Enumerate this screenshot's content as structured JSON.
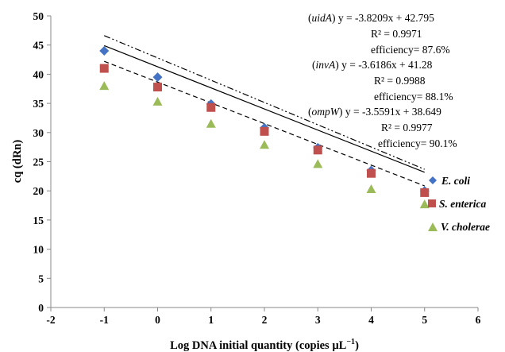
{
  "chart_data": {
    "type": "scatter",
    "xlabel": "Log DNA initial quantity (copies µL",
    "xlabel_sup": "−1",
    "xlabel_close": ")",
    "ylabel": "cq (dRn)",
    "xlim": [
      -2,
      6
    ],
    "ylim": [
      0,
      50
    ],
    "xticks": [
      "-2",
      "-1",
      "0",
      "1",
      "2",
      "3",
      "4",
      "5",
      "6"
    ],
    "yticks": [
      "0",
      "5",
      "10",
      "15",
      "20",
      "25",
      "30",
      "35",
      "40",
      "45",
      "50"
    ],
    "grid": false,
    "legend_position": "right",
    "series": [
      {
        "name": "E. coli",
        "marker": "diamond",
        "color": "#4472C4",
        "line_style": "dash-dot-dot",
        "x": [
          -1,
          0,
          1,
          2,
          3,
          4,
          5
        ],
        "y": [
          44.0,
          39.5,
          34.9,
          30.8,
          27.4,
          23.5,
          20.0
        ],
        "fit": {
          "slope": -3.8209,
          "intercept": 42.795
        }
      },
      {
        "name": "S. enterica",
        "marker": "square",
        "color": "#C0504D",
        "line_style": "solid",
        "x": [
          -1,
          0,
          1,
          2,
          3,
          4,
          5
        ],
        "y": [
          41.0,
          37.8,
          34.3,
          30.2,
          27.0,
          23.0,
          19.7
        ],
        "fit": {
          "slope": -3.6186,
          "intercept": 41.28
        }
      },
      {
        "name": "V. cholerae",
        "marker": "triangle",
        "color": "#9BBB59",
        "line_style": "dashed",
        "x": [
          -1,
          0,
          1,
          2,
          3,
          4,
          5
        ],
        "y": [
          38.0,
          35.3,
          31.5,
          27.9,
          24.6,
          20.3,
          17.7
        ],
        "fit": {
          "slope": -3.5591,
          "intercept": 38.649
        }
      }
    ],
    "annotations": [
      {
        "gene": "uidA",
        "equation": ") y = -3.8209x + 42.795",
        "r2": "R² = 0.9971",
        "efficiency": "efficiency= 87.6%"
      },
      {
        "gene": "invA",
        "equation": ") y = -3.6186x + 41.28",
        "r2": "R² = 0.9988",
        "efficiency": "efficiency= 88.1%"
      },
      {
        "gene": "ompW",
        "equation": ") y = -3.5591x + 38.649",
        "r2": "R² = 0.9977",
        "efficiency": "efficiency= 90.1%"
      }
    ]
  }
}
